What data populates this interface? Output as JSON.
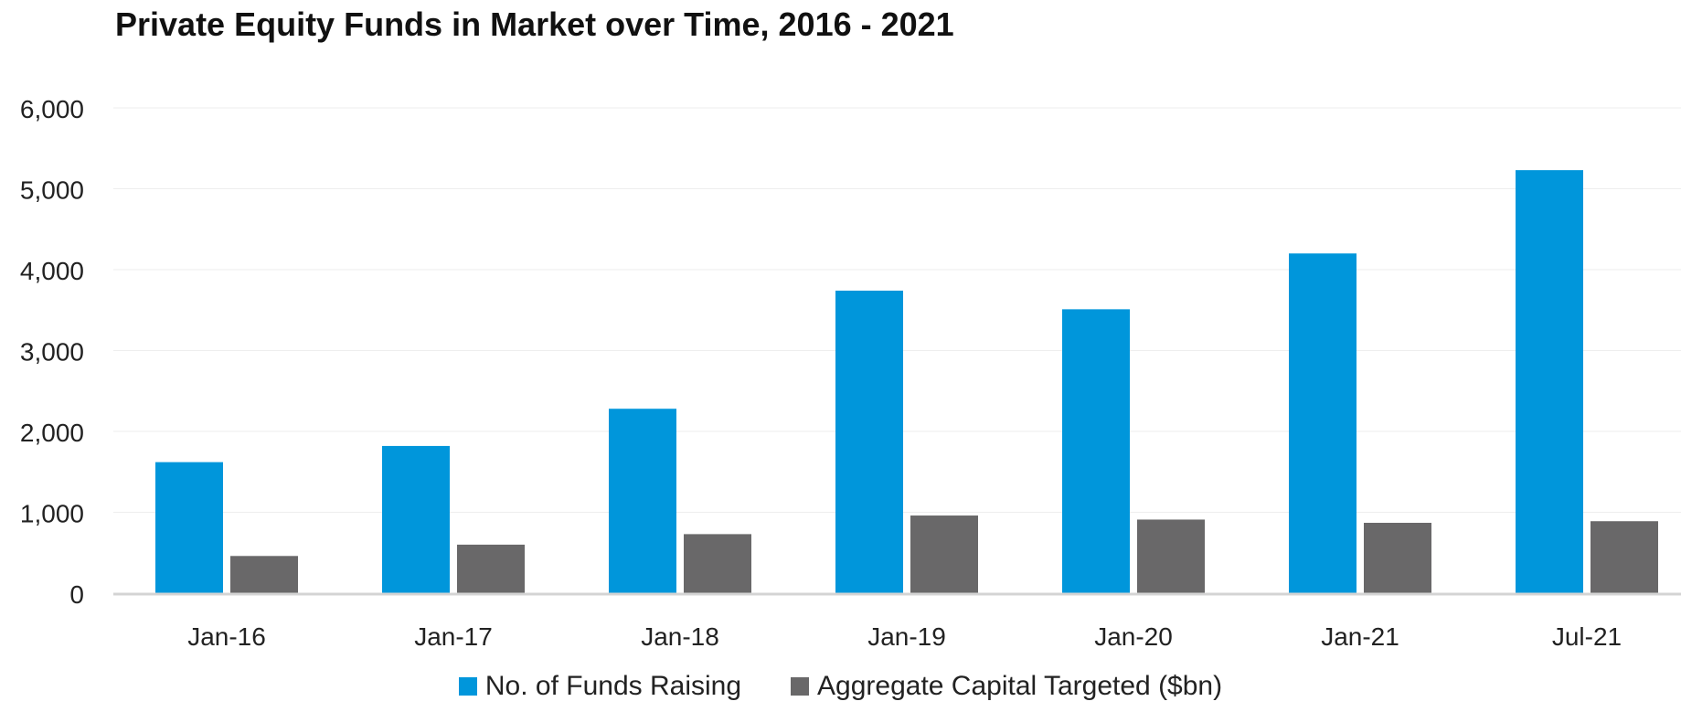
{
  "chart_data": {
    "type": "bar",
    "title": "Private Equity Funds in Market over Time, 2016 - 2021",
    "categories": [
      "Jan-16",
      "Jan-17",
      "Jan-18",
      "Jan-19",
      "Jan-20",
      "Jan-21",
      "Jul-21"
    ],
    "series": [
      {
        "name": "No. of Funds Raising",
        "color": "#0096db",
        "values": [
          1620,
          1820,
          2280,
          3740,
          3510,
          4200,
          5230
        ]
      },
      {
        "name": "Aggregate Capital Targeted ($bn)",
        "color": "#696869",
        "values": [
          460,
          600,
          730,
          960,
          910,
          870,
          890
        ]
      }
    ],
    "yticks": [
      "0",
      "1,000",
      "2,000",
      "3,000",
      "4,000",
      "5,000",
      "6,000"
    ],
    "ylim": [
      0,
      6000
    ],
    "grid": true,
    "legend_position": "bottom"
  }
}
